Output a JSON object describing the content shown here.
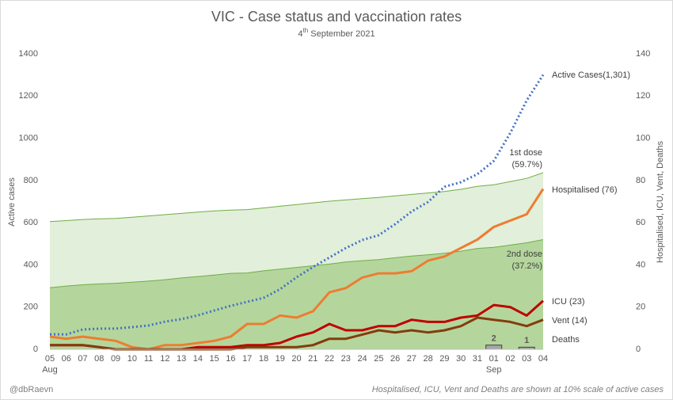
{
  "chart_data": {
    "type": "line",
    "title": "VIC - Case status and vaccination rates",
    "subtitle_parts": [
      "4",
      "th",
      " September  2021"
    ],
    "y_label": "Active cases",
    "y2_label": "Hospitalised, ICU, Vent, Deaths",
    "credit": "@dbRaevn",
    "note": "Hospitalised, ICU, Vent and Deaths are shown at 10% scale of active cases",
    "categories": [
      "05",
      "06",
      "07",
      "08",
      "09",
      "10",
      "11",
      "12",
      "13",
      "14",
      "15",
      "16",
      "17",
      "18",
      "19",
      "20",
      "21",
      "22",
      "23",
      "24",
      "25",
      "26",
      "27",
      "28",
      "29",
      "30",
      "31",
      "01",
      "02",
      "03",
      "04"
    ],
    "month_labels": [
      "Aug",
      null,
      null,
      null,
      null,
      null,
      null,
      null,
      null,
      null,
      null,
      null,
      null,
      null,
      null,
      null,
      null,
      null,
      null,
      null,
      null,
      null,
      null,
      null,
      null,
      null,
      null,
      "Sep",
      null,
      null,
      null
    ],
    "ylim": [
      0,
      1400
    ],
    "yticks": [
      0,
      200,
      400,
      600,
      800,
      1000,
      1200,
      1400
    ],
    "y2lim": [
      0,
      140
    ],
    "y2ticks": [
      0,
      20,
      40,
      60,
      80,
      100,
      120,
      140
    ],
    "series": [
      {
        "name": "1st dose",
        "label": [
          "1st dose",
          "(59.7%)"
        ],
        "style": "area",
        "color": "#70ad47",
        "fill": "#e2efda",
        "axis": "y",
        "values": [
          605,
          610,
          615,
          618,
          620,
          626,
          632,
          638,
          644,
          650,
          656,
          660,
          662,
          670,
          678,
          686,
          694,
          702,
          708,
          714,
          720,
          727,
          734,
          741,
          748,
          758,
          772,
          780,
          795,
          810,
          837
        ]
      },
      {
        "name": "2nd dose",
        "label": [
          "2nd dose",
          "(37.2%)"
        ],
        "style": "area",
        "color": "#70ad47",
        "fill": "#b4d69c",
        "axis": "y",
        "values": [
          292,
          300,
          306,
          310,
          313,
          318,
          323,
          330,
          338,
          345,
          352,
          360,
          362,
          372,
          380,
          388,
          396,
          404,
          414,
          420,
          425,
          434,
          442,
          448,
          455,
          465,
          478,
          483,
          494,
          505,
          520
        ]
      },
      {
        "name": "Active Cases(1,301)",
        "style": "dotted",
        "color": "#4472c4",
        "axis": "y",
        "values": [
          71,
          71,
          94,
          98,
          98,
          105,
          113,
          131,
          143,
          161,
          184,
          206,
          225,
          244,
          285,
          341,
          390,
          435,
          480,
          518,
          541,
          593,
          653,
          698,
          770,
          792,
          830,
          893,
          1025,
          1179,
          1301
        ]
      },
      {
        "name": "Hospitalised (76)",
        "style": "line",
        "color": "#ed7d31",
        "axis": "y2",
        "values": [
          6,
          5,
          6,
          5,
          4,
          1,
          0,
          2,
          2,
          3,
          4,
          6,
          12,
          12,
          16,
          15,
          18,
          27,
          29,
          34,
          36,
          36,
          37,
          42,
          44,
          48,
          52,
          58,
          61,
          64,
          76
        ]
      },
      {
        "name": "ICU (23)",
        "style": "line",
        "color": "#c00000",
        "axis": "y2",
        "values": [
          2,
          2,
          2,
          1,
          0,
          0,
          0,
          0,
          0,
          1,
          1,
          1,
          2,
          2,
          3,
          6,
          8,
          12,
          9,
          9,
          11,
          11,
          14,
          13,
          13,
          15,
          16,
          21,
          20,
          16,
          23
        ]
      },
      {
        "name": "Vent (14)",
        "style": "line",
        "color": "#843c0c",
        "axis": "y2",
        "values": [
          2,
          2,
          2,
          1,
          0,
          0,
          0,
          0,
          0,
          0,
          0,
          0,
          1,
          1,
          1,
          1,
          2,
          5,
          5,
          7,
          9,
          8,
          9,
          8,
          9,
          11,
          15,
          14,
          13,
          11,
          14
        ]
      },
      {
        "name": "Deaths",
        "style": "bar",
        "color": "#a6a6a6",
        "axis": "y2",
        "values": [
          null,
          null,
          null,
          null,
          null,
          null,
          null,
          null,
          null,
          null,
          null,
          null,
          null,
          null,
          null,
          null,
          null,
          null,
          null,
          null,
          null,
          null,
          null,
          null,
          null,
          null,
          null,
          2,
          null,
          1,
          null
        ]
      }
    ]
  }
}
